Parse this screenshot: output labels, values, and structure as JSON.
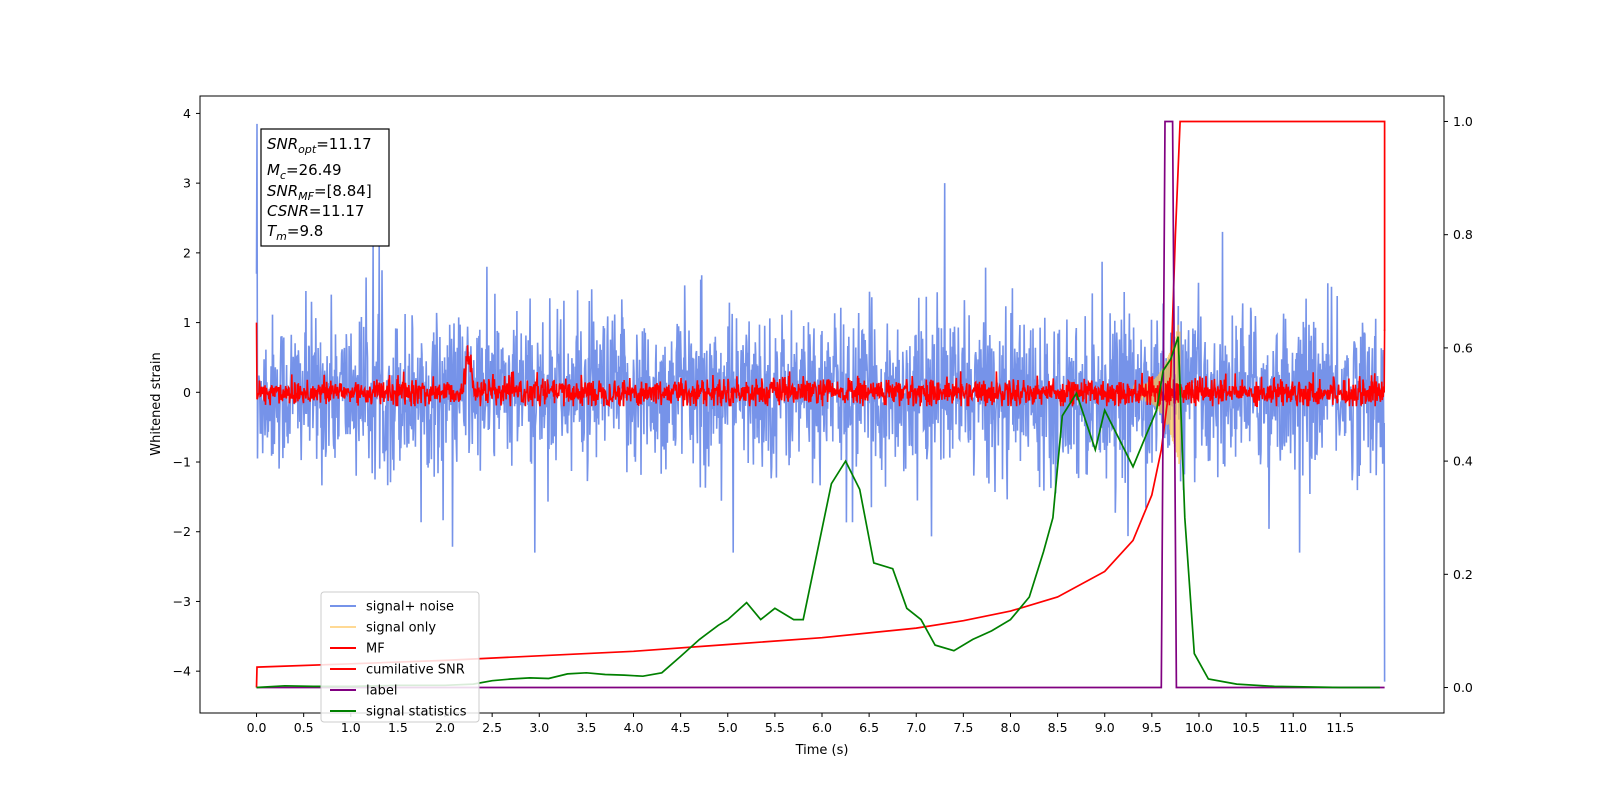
{
  "chart_data": {
    "type": "line",
    "xlabel": "Time (s)",
    "ylabel": "Whitened strain",
    "xlim": [
      -0.6,
      12.6
    ],
    "ylim": [
      -4.6,
      4.25
    ],
    "y2lim": [
      -0.045,
      1.045
    ],
    "xticks": [
      "0.0",
      "0.5",
      "1.0",
      "1.5",
      "2.0",
      "2.5",
      "3.0",
      "3.5",
      "4.0",
      "4.5",
      "5.0",
      "5.5",
      "6.0",
      "6.5",
      "7.0",
      "7.5",
      "8.0",
      "8.5",
      "9.0",
      "9.5",
      "10.0",
      "10.5",
      "11.0",
      "11.5"
    ],
    "yticks": [
      "4",
      "3",
      "2",
      "1",
      "0",
      "−1",
      "−2",
      "−3",
      "−4"
    ],
    "y2ticks": [
      "1.0",
      "0.8",
      "0.6",
      "0.4",
      "0.2",
      "0.0"
    ],
    "legend": {
      "position": "lower-left",
      "entries": [
        {
          "label": "signal+ noise",
          "color": "#4169e1"
        },
        {
          "label": "signal only",
          "color": "#ffc04d"
        },
        {
          "label": "MF",
          "color": "#ff0000"
        },
        {
          "label": "cumilative SNR",
          "color": "#ff0000"
        },
        {
          "label": "label",
          "color": "#800080"
        },
        {
          "label": "signal statistics",
          "color": "#008000"
        }
      ]
    },
    "annotations": {
      "snr_opt": "=11.17",
      "mc": "=26.49",
      "snr_mf": "=[8.84]",
      "csnr": "=11.17",
      "tm": "=9.8"
    },
    "series": [
      {
        "name": "signal+ noise",
        "axis": "left",
        "description_values": "dense noise, |strain| mostly within 1.5, peaks near 3.0 at x=7.3, spike 3.85 at x=0.0",
        "x_range": [
          0.0,
          11.97
        ],
        "envelope": {
          "typical_min": -1.2,
          "typical_max": 1.2,
          "peak_max": 3.85,
          "peak_min": -4.15
        }
      },
      {
        "name": "signal only",
        "axis": "left",
        "chirp": {
          "start": 9.3,
          "end": 9.8,
          "max_amplitude": 1.0
        }
      },
      {
        "name": "MF",
        "axis": "left",
        "x_range": [
          0.0,
          11.97
        ],
        "bump": {
          "x": 2.25,
          "y": 0.45
        }
      },
      {
        "name": "cumilative SNR",
        "axis": "right",
        "points": [
          [
            0.0,
            0.0
          ],
          [
            0.005,
            0.036
          ],
          [
            1.0,
            0.042
          ],
          [
            2.0,
            0.048
          ],
          [
            3.0,
            0.056
          ],
          [
            4.0,
            0.064
          ],
          [
            5.0,
            0.076
          ],
          [
            6.0,
            0.088
          ],
          [
            7.0,
            0.105
          ],
          [
            7.5,
            0.118
          ],
          [
            8.0,
            0.135
          ],
          [
            8.5,
            0.16
          ],
          [
            9.0,
            0.205
          ],
          [
            9.3,
            0.26
          ],
          [
            9.5,
            0.34
          ],
          [
            9.6,
            0.42
          ],
          [
            9.7,
            0.55
          ],
          [
            9.75,
            0.8
          ],
          [
            9.8,
            1.0
          ],
          [
            11.97,
            1.0
          ],
          [
            11.97,
            0.63
          ]
        ]
      },
      {
        "name": "label",
        "axis": "right",
        "points": [
          [
            0.0,
            0.0
          ],
          [
            9.6,
            0.0
          ],
          [
            9.64,
            1.0
          ],
          [
            9.72,
            1.0
          ],
          [
            9.76,
            0.0
          ],
          [
            11.97,
            0.0
          ]
        ]
      },
      {
        "name": "signal statistics",
        "axis": "right",
        "points": [
          [
            0.0,
            0.0
          ],
          [
            0.3,
            0.003
          ],
          [
            0.6,
            0.002
          ],
          [
            1.0,
            0.002
          ],
          [
            1.5,
            0.004
          ],
          [
            2.0,
            0.004
          ],
          [
            2.3,
            0.006
          ],
          [
            2.5,
            0.012
          ],
          [
            2.7,
            0.015
          ],
          [
            2.9,
            0.017
          ],
          [
            3.1,
            0.016
          ],
          [
            3.3,
            0.024
          ],
          [
            3.5,
            0.026
          ],
          [
            3.7,
            0.023
          ],
          [
            3.9,
            0.022
          ],
          [
            4.1,
            0.02
          ],
          [
            4.3,
            0.026
          ],
          [
            4.5,
            0.055
          ],
          [
            4.7,
            0.085
          ],
          [
            4.9,
            0.11
          ],
          [
            5.0,
            0.12
          ],
          [
            5.2,
            0.15
          ],
          [
            5.35,
            0.12
          ],
          [
            5.5,
            0.14
          ],
          [
            5.7,
            0.12
          ],
          [
            5.8,
            0.12
          ],
          [
            5.95,
            0.24
          ],
          [
            6.1,
            0.36
          ],
          [
            6.25,
            0.4
          ],
          [
            6.4,
            0.35
          ],
          [
            6.55,
            0.22
          ],
          [
            6.75,
            0.21
          ],
          [
            6.9,
            0.14
          ],
          [
            7.05,
            0.12
          ],
          [
            7.2,
            0.075
          ],
          [
            7.4,
            0.065
          ],
          [
            7.6,
            0.085
          ],
          [
            7.8,
            0.1
          ],
          [
            8.0,
            0.12
          ],
          [
            8.2,
            0.16
          ],
          [
            8.35,
            0.24
          ],
          [
            8.45,
            0.3
          ],
          [
            8.55,
            0.48
          ],
          [
            8.7,
            0.52
          ],
          [
            8.8,
            0.47
          ],
          [
            8.9,
            0.42
          ],
          [
            9.0,
            0.49
          ],
          [
            9.15,
            0.44
          ],
          [
            9.3,
            0.39
          ],
          [
            9.45,
            0.45
          ],
          [
            9.55,
            0.49
          ],
          [
            9.62,
            0.56
          ],
          [
            9.7,
            0.58
          ],
          [
            9.78,
            0.62
          ],
          [
            9.85,
            0.3
          ],
          [
            9.95,
            0.06
          ],
          [
            10.1,
            0.015
          ],
          [
            10.4,
            0.006
          ],
          [
            10.8,
            0.002
          ],
          [
            11.5,
            0.0
          ],
          [
            11.92,
            0.0
          ]
        ]
      }
    ]
  }
}
